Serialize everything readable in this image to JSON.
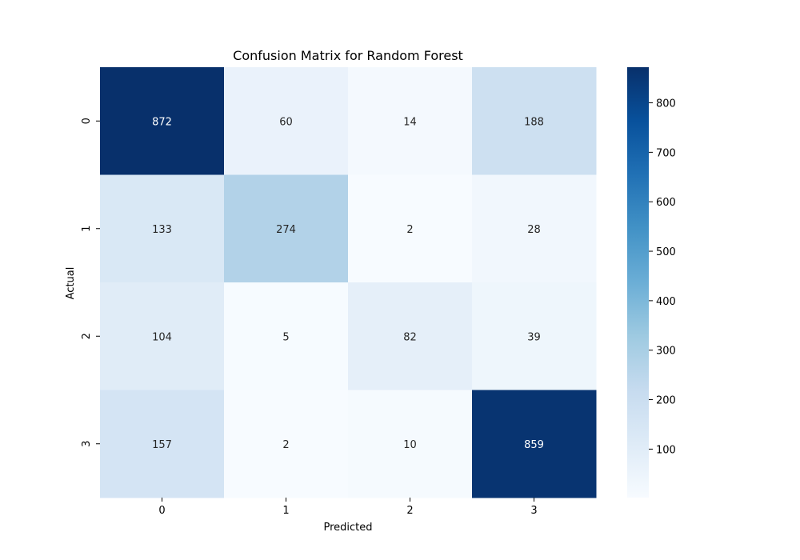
{
  "chart_data": {
    "type": "heatmap",
    "title": "Confusion Matrix for Random Forest",
    "xlabel": "Predicted",
    "ylabel": "Actual",
    "x_categories": [
      "0",
      "1",
      "2",
      "3"
    ],
    "y_categories": [
      "0",
      "1",
      "2",
      "3"
    ],
    "values": [
      [
        872,
        60,
        14,
        188
      ],
      [
        133,
        274,
        2,
        28
      ],
      [
        104,
        5,
        82,
        39
      ],
      [
        157,
        2,
        10,
        859
      ]
    ],
    "colormap": "Blues",
    "color_range": [
      2,
      872
    ],
    "colorbar": {
      "ticks": [
        100,
        200,
        300,
        400,
        500,
        600,
        700,
        800
      ]
    },
    "annotated": true,
    "grid": false,
    "colors": {
      "low": "#f7fbff",
      "high": "#08306b",
      "light_text": "#ffffff",
      "dark_text": "#262626"
    }
  }
}
